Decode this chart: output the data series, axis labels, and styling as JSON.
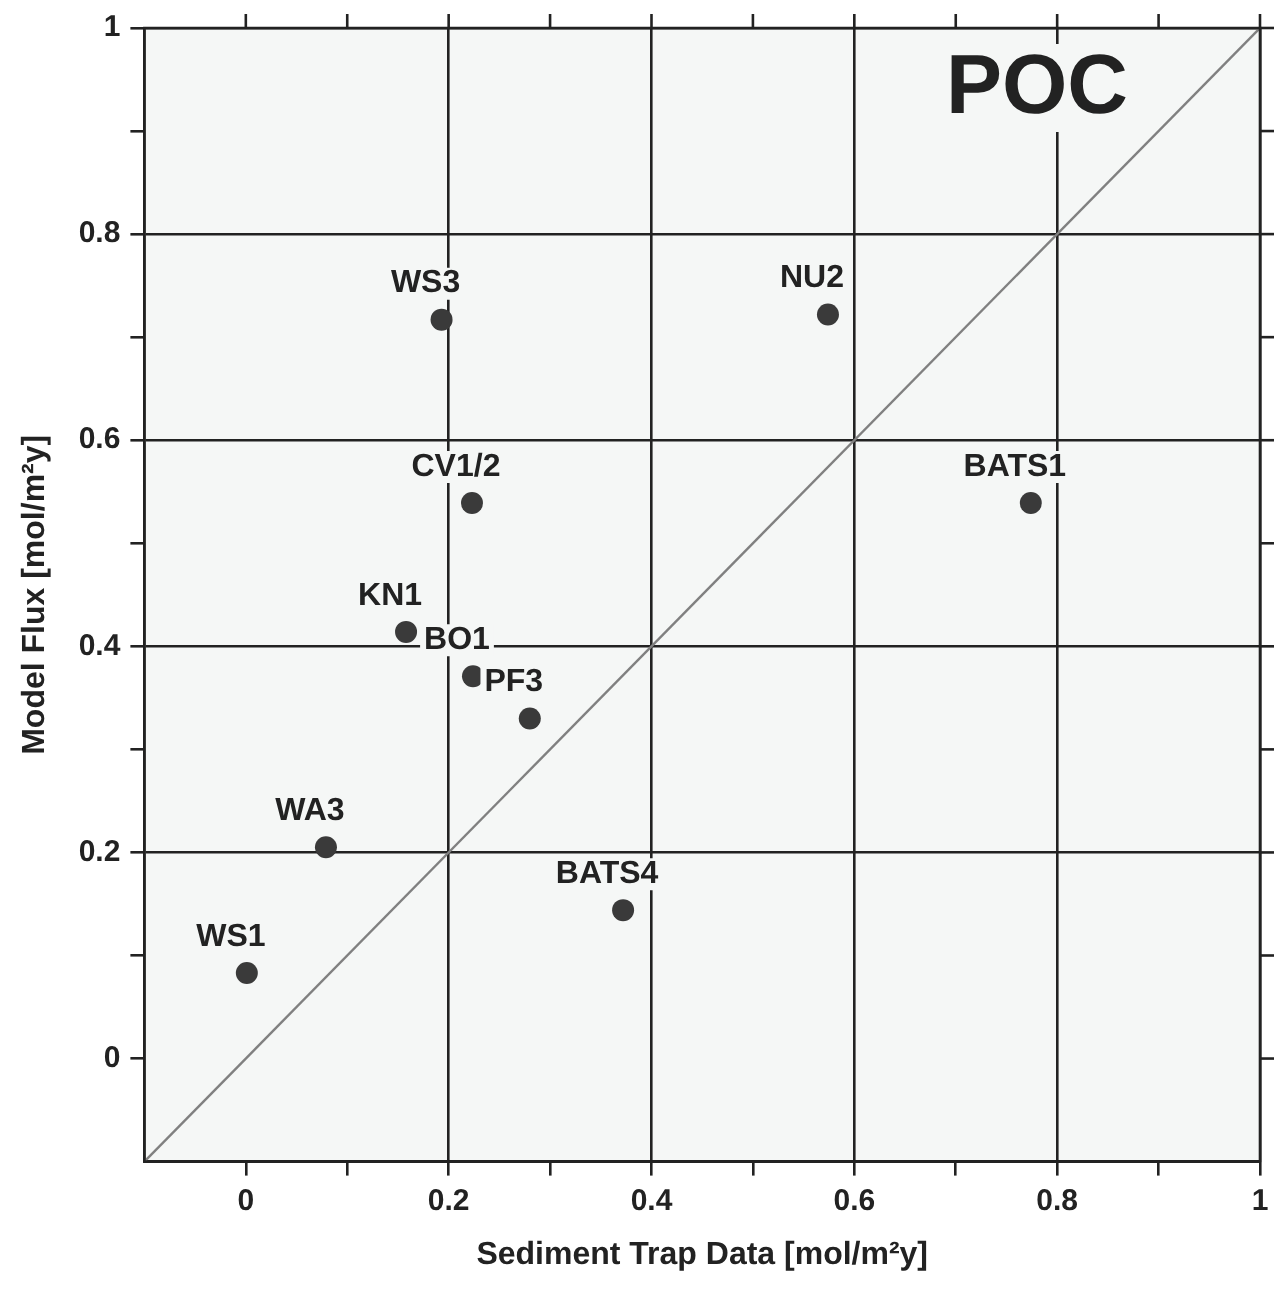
{
  "chart_data": {
    "type": "scatter",
    "title": "POC",
    "xlabel": "Sediment Trap Data [mol/m²y]",
    "ylabel": "Model Flux [mol/m²y]",
    "xlim": [
      -0.1,
      1
    ],
    "ylim": [
      -0.1,
      1
    ],
    "xticks": [
      0,
      {
        "value": 0.1,
        "label": null
      },
      0.2,
      {
        "value": 0.3,
        "label": null
      },
      0.4,
      {
        "value": 0.5,
        "label": null
      },
      0.6,
      {
        "value": 0.7,
        "label": null
      },
      0.8,
      {
        "value": 0.9,
        "label": null
      },
      1
    ],
    "yticks": [
      0,
      {
        "value": 0.1,
        "label": null
      },
      0.2,
      {
        "value": 0.3,
        "label": null
      },
      0.4,
      {
        "value": 0.5,
        "label": null
      },
      0.6,
      {
        "value": 0.7,
        "label": null
      },
      0.8,
      {
        "value": 0.9,
        "label": null
      },
      1
    ],
    "grid": true,
    "legend": false,
    "marker": "circle",
    "series": [
      {
        "type": "scatter",
        "color": "#3a3a3a",
        "x": [
          0.001,
          0.079,
          0.158,
          0.224,
          0.28,
          0.193,
          0.223,
          0.372,
          0.574,
          0.774
        ],
        "values": [
          0.083,
          0.205,
          0.414,
          0.371,
          0.33,
          0.717,
          0.539,
          0.144,
          0.722,
          0.539
        ]
      },
      {
        "type": "line",
        "color": "#808080",
        "line_style": "solid",
        "marker": "none",
        "x": [
          -0.1,
          1
        ],
        "values": [
          -0.1,
          1
        ]
      }
    ],
    "annotations": [
      {
        "text": "WS1",
        "x": 0.001,
        "y": 0.083
      },
      {
        "text": "WA3",
        "x": 0.079,
        "y": 0.205
      },
      {
        "text": "KN1",
        "x": 0.158,
        "y": 0.414
      },
      {
        "text": "BO1",
        "x": 0.224,
        "y": 0.371
      },
      {
        "text": "PF3",
        "x": 0.28,
        "y": 0.33
      },
      {
        "text": "WS3",
        "x": 0.193,
        "y": 0.717
      },
      {
        "text": "CV1/2",
        "x": 0.223,
        "y": 0.539
      },
      {
        "text": "BATS4",
        "x": 0.372,
        "y": 0.144
      },
      {
        "text": "NU2",
        "x": 0.574,
        "y": 0.722
      },
      {
        "text": "BATS1",
        "x": 0.774,
        "y": 0.539
      }
    ]
  }
}
